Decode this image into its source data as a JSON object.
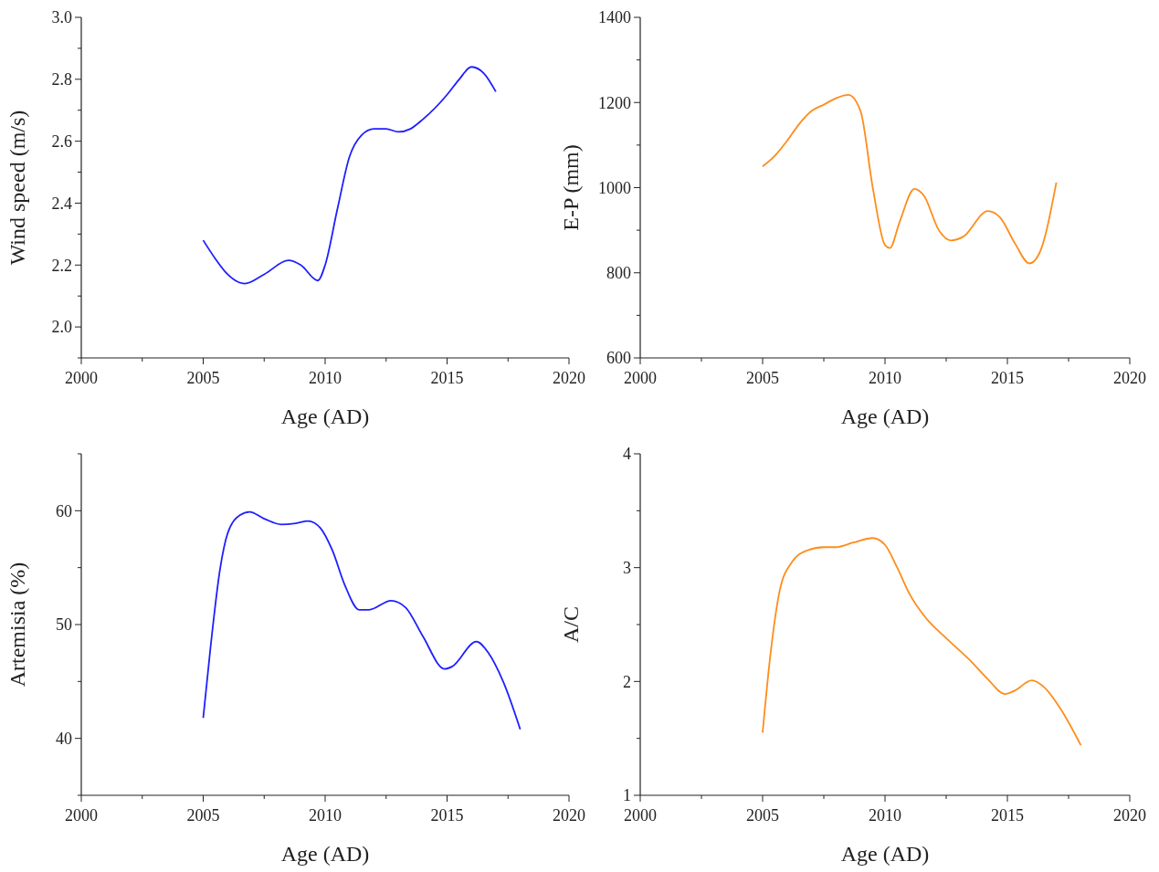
{
  "chart_data": [
    {
      "type": "line",
      "xlabel": "Age (AD)",
      "ylabel": "Wind speed (m/s)",
      "xlim": [
        2000,
        2020
      ],
      "xticks": [
        2000,
        {
          "value": 2002.5,
          "label": null
        },
        2005,
        {
          "value": 2007.5,
          "label": null
        },
        2010,
        {
          "value": 2012.5,
          "label": null
        },
        2015,
        {
          "value": 2017.5,
          "label": null
        },
        2020
      ],
      "ylim": [
        1.9,
        3.0
      ],
      "yticks": [
        {
          "value": 1.9,
          "label": null
        },
        {
          "value": 2.0,
          "label": "2.0"
        },
        {
          "value": 2.1,
          "label": null
        },
        {
          "value": 2.2,
          "label": "2.2"
        },
        {
          "value": 2.3,
          "label": null
        },
        {
          "value": 2.4,
          "label": "2.4"
        },
        {
          "value": 2.5,
          "label": null
        },
        {
          "value": 2.6,
          "label": "2.6"
        },
        {
          "value": 2.7,
          "label": null
        },
        {
          "value": 2.8,
          "label": "2.8"
        },
        {
          "value": 2.9,
          "label": null
        },
        {
          "value": 3.0,
          "label": "3.0"
        }
      ],
      "grid": false,
      "marker": "none",
      "line_style": "solid",
      "series": [
        {
          "color": "#1f1fff",
          "x": [
            2005,
            2005.5,
            2006,
            2006.7,
            2007.5,
            2008.5,
            2009,
            2009.7,
            2010,
            2010.5,
            2011,
            2011.5,
            2012,
            2012.5,
            2013,
            2013.5,
            2014,
            2015,
            2015.5,
            2016,
            2016.5,
            2017
          ],
          "values": [
            2.28,
            2.22,
            2.17,
            2.14,
            2.17,
            2.215,
            2.2,
            2.15,
            2.2,
            2.38,
            2.55,
            2.62,
            2.64,
            2.64,
            2.63,
            2.64,
            2.67,
            2.75,
            2.8,
            2.84,
            2.82,
            2.76
          ]
        }
      ]
    },
    {
      "type": "line",
      "xlabel": "Age (AD)",
      "ylabel": "E-P (mm)",
      "xlim": [
        2000,
        2020
      ],
      "xticks": [
        2000,
        {
          "value": 2002.5,
          "label": null
        },
        2005,
        {
          "value": 2007.5,
          "label": null
        },
        2010,
        {
          "value": 2012.5,
          "label": null
        },
        2015,
        {
          "value": 2017.5,
          "label": null
        },
        2020
      ],
      "ylim": [
        600,
        1400
      ],
      "yticks": [
        600,
        {
          "value": 700,
          "label": null
        },
        800,
        {
          "value": 900,
          "label": null
        },
        1000,
        {
          "value": 1100,
          "label": null
        },
        1200,
        {
          "value": 1300,
          "label": null
        },
        1400
      ],
      "grid": false,
      "marker": "none",
      "line_style": "solid",
      "series": [
        {
          "color": "#ff8c1a",
          "x": [
            2005,
            2005.5,
            2006,
            2006.5,
            2007,
            2007.5,
            2008,
            2008.5,
            2009,
            2009.5,
            2010,
            2010.2,
            2010.6,
            2011.2,
            2011.6,
            2012.2,
            2012.7,
            2013.2,
            2014.2,
            2014.7,
            2015.3,
            2015.9,
            2016.3,
            2017
          ],
          "values": [
            1050,
            1075,
            1110,
            1150,
            1180,
            1195,
            1210,
            1218,
            1180,
            1000,
            865,
            858,
            920,
            997,
            980,
            900,
            876,
            885,
            945,
            930,
            870,
            822,
            845,
            1012
          ]
        }
      ]
    },
    {
      "type": "line",
      "xlabel": "Age (AD)",
      "ylabel": "Artemisia (%)",
      "xlim": [
        2000,
        2020
      ],
      "xticks": [
        2000,
        {
          "value": 2002.5,
          "label": null
        },
        2005,
        {
          "value": 2007.5,
          "label": null
        },
        2010,
        {
          "value": 2012.5,
          "label": null
        },
        2015,
        {
          "value": 2017.5,
          "label": null
        },
        2020
      ],
      "ylim": [
        35,
        65
      ],
      "yticks": [
        {
          "value": 35,
          "label": null
        },
        40,
        {
          "value": 45,
          "label": null
        },
        50,
        {
          "value": 55,
          "label": null
        },
        60,
        {
          "value": 65,
          "label": null
        }
      ],
      "grid": false,
      "marker": "none",
      "line_style": "solid",
      "series": [
        {
          "color": "#1f1fff",
          "x": [
            2005,
            2005.3,
            2005.7,
            2006,
            2006.5,
            2006.9,
            2007.5,
            2008.2,
            2008.8,
            2009.3,
            2009.8,
            2010.3,
            2010.8,
            2011.4,
            2011.8,
            2012.7,
            2013.3,
            2014,
            2014.9,
            2015.2,
            2016.2,
            2016.7,
            2017.3,
            2018
          ],
          "values": [
            41.8,
            48,
            55,
            58,
            59.6,
            59.9,
            59.3,
            58.8,
            58.9,
            59.1,
            58.5,
            56.5,
            53.5,
            51.3,
            51.3,
            52.1,
            51.5,
            49,
            46.1,
            46.3,
            48.5,
            47.5,
            45,
            40.8
          ]
        }
      ]
    },
    {
      "type": "line",
      "xlabel": "Age (AD)",
      "ylabel": "A/C",
      "xlim": [
        2000,
        2020
      ],
      "xticks": [
        2000,
        {
          "value": 2002.5,
          "label": null
        },
        2005,
        {
          "value": 2007.5,
          "label": null
        },
        2010,
        {
          "value": 2012.5,
          "label": null
        },
        2015,
        {
          "value": 2017.5,
          "label": null
        },
        2020
      ],
      "ylim": [
        1,
        4
      ],
      "yticks": [
        1,
        {
          "value": 1.5,
          "label": null
        },
        2,
        {
          "value": 2.5,
          "label": null
        },
        3,
        {
          "value": 3.5,
          "label": null
        },
        4
      ],
      "grid": false,
      "marker": "none",
      "line_style": "solid",
      "series": [
        {
          "color": "#ff8c1a",
          "x": [
            2005,
            2005.3,
            2005.7,
            2006.2,
            2006.8,
            2007.5,
            2008,
            2008.7,
            2009.5,
            2010,
            2010.5,
            2011,
            2011.7,
            2012.5,
            2013.5,
            2014.2,
            2014.9,
            2015.3,
            2016,
            2016.5,
            2017.2,
            2018
          ],
          "values": [
            1.55,
            2.2,
            2.8,
            3.05,
            3.15,
            3.18,
            3.18,
            3.22,
            3.26,
            3.2,
            3.0,
            2.77,
            2.55,
            2.38,
            2.18,
            2.02,
            1.89,
            1.92,
            2.01,
            1.95,
            1.75,
            1.44
          ]
        }
      ]
    }
  ]
}
